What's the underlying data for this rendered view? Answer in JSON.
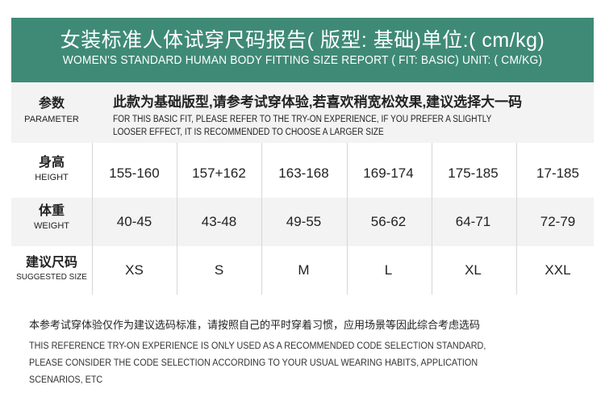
{
  "header": {
    "title_cn": "女装标准人体试穿尺码报告( 版型: 基础)单位:( cm/kg)",
    "title_en": "WOMEN'S STANDARD HUMAN BODY FITTING SIZE REPORT ( FIT: BASIC) UNIT: ( CM/KG)",
    "color": "#3f8a77"
  },
  "parameter": {
    "label_cn": "参数",
    "label_en": "PARAMETER",
    "text_cn": "此款为基础版型,请参考试穿体验,若喜欢稍宽松效果,建议选择大一码",
    "text_en_1": "FOR THIS BASIC FIT, PLEASE REFER TO THE TRY-ON EXPERIENCE, IF YOU PREFER A SLIGHTLY",
    "text_en_2": "LOOSER EFFECT, IT IS RECOMMENDED TO CHOOSE A LARGER SIZE"
  },
  "rows": [
    {
      "label_cn": "身高",
      "label_en": "HEIGHT",
      "values": [
        "155-160",
        "157+162",
        "163-168",
        "169-174",
        "175-185",
        "17-185"
      ]
    },
    {
      "label_cn": "体重",
      "label_en": "WEIGHT",
      "values": [
        "40-45",
        "43-48",
        "49-55",
        "56-62",
        "64-71",
        "72-79"
      ]
    },
    {
      "label_cn": "建议尺码",
      "label_en": "SUGGESTED SIZE",
      "values": [
        "XS",
        "S",
        "M",
        "L",
        "XL",
        "XXL"
      ]
    }
  ],
  "note": {
    "cn": "本参考试穿体验仅作为建议选码标准，请按照自己的平时穿着习惯，应用场景等因此综合考虑选码",
    "en_1": "THIS REFERENCE TRY-ON EXPERIENCE IS ONLY USED AS A RECOMMENDED CODE SELECTION STANDARD,",
    "en_2": "PLEASE CONSIDER THE CODE SELECTION ACCORDING TO YOUR USUAL WEARING HABITS, APPLICATION",
    "en_3": "SCENARIOS, ETC"
  }
}
